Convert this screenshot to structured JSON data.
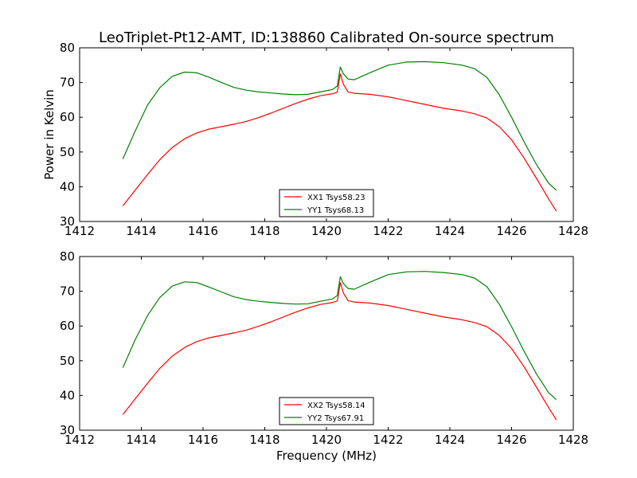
{
  "chart_data": [
    {
      "type": "line",
      "title": "LeoTriplet-Pt12-AMT, ID:138860 Calibrated On-source spectrum",
      "ylabel": "Power in Kelvin",
      "xlabel": "",
      "xlim": [
        1412,
        1428
      ],
      "ylim": [
        30,
        80
      ],
      "xticks": [
        1412,
        1414,
        1416,
        1418,
        1420,
        1422,
        1424,
        1426,
        1428
      ],
      "yticks": [
        30,
        40,
        50,
        60,
        70,
        80
      ],
      "legend_position": "lower-center",
      "grid": false,
      "series": [
        {
          "name": "XX1 Tsys58.23",
          "color": "#ff0000",
          "x": [
            1413.4,
            1413.8,
            1414.2,
            1414.6,
            1415.0,
            1415.4,
            1415.8,
            1416.2,
            1416.6,
            1417.0,
            1417.4,
            1417.8,
            1418.2,
            1418.6,
            1419.0,
            1419.4,
            1419.8,
            1420.2,
            1420.35,
            1420.45,
            1420.55,
            1420.7,
            1420.9,
            1421.4,
            1422.0,
            1422.6,
            1423.2,
            1423.8,
            1424.4,
            1424.8,
            1425.2,
            1425.6,
            1426.0,
            1426.4,
            1426.8,
            1427.2,
            1427.45
          ],
          "y": [
            34.5,
            39.0,
            43.5,
            47.8,
            51.3,
            53.8,
            55.5,
            56.6,
            57.3,
            58.0,
            58.8,
            59.9,
            61.2,
            62.6,
            64.0,
            65.2,
            66.2,
            66.8,
            67.2,
            72.5,
            69.5,
            67.3,
            66.9,
            66.6,
            65.9,
            64.8,
            63.7,
            62.6,
            61.8,
            61.0,
            59.8,
            57.3,
            53.5,
            48.3,
            42.5,
            36.5,
            33.0
          ]
        },
        {
          "name": "YY1 Tsys68.13",
          "color": "#008000",
          "x": [
            1413.4,
            1413.8,
            1414.2,
            1414.6,
            1415.0,
            1415.4,
            1415.8,
            1416.2,
            1416.6,
            1417.0,
            1417.4,
            1417.8,
            1418.2,
            1418.6,
            1419.0,
            1419.4,
            1419.8,
            1420.2,
            1420.35,
            1420.45,
            1420.55,
            1420.7,
            1420.9,
            1421.4,
            1422.0,
            1422.6,
            1423.2,
            1423.8,
            1424.4,
            1424.8,
            1425.2,
            1425.6,
            1426.0,
            1426.4,
            1426.8,
            1427.2,
            1427.45
          ],
          "y": [
            48.0,
            56.0,
            63.5,
            68.5,
            71.8,
            73.0,
            72.8,
            71.5,
            70.0,
            68.6,
            67.8,
            67.3,
            67.0,
            66.7,
            66.5,
            66.6,
            67.3,
            68.0,
            69.0,
            74.5,
            72.5,
            71.0,
            70.8,
            72.8,
            75.0,
            75.9,
            76.0,
            75.7,
            75.0,
            74.0,
            71.5,
            66.5,
            60.0,
            53.0,
            46.5,
            41.0,
            39.0
          ]
        }
      ]
    },
    {
      "type": "line",
      "title": "",
      "ylabel": "",
      "xlabel": "Frequency (MHz)",
      "xlim": [
        1412,
        1428
      ],
      "ylim": [
        30,
        80
      ],
      "xticks": [
        1412,
        1414,
        1416,
        1418,
        1420,
        1422,
        1424,
        1426,
        1428
      ],
      "yticks": [
        30,
        40,
        50,
        60,
        70,
        80
      ],
      "legend_position": "lower-center",
      "grid": false,
      "series": [
        {
          "name": "XX2 Tsys58.14",
          "color": "#ff0000",
          "x": [
            1413.4,
            1413.8,
            1414.2,
            1414.6,
            1415.0,
            1415.4,
            1415.8,
            1416.2,
            1416.6,
            1417.0,
            1417.4,
            1417.8,
            1418.2,
            1418.6,
            1419.0,
            1419.4,
            1419.8,
            1420.2,
            1420.35,
            1420.45,
            1420.55,
            1420.7,
            1420.9,
            1421.4,
            1422.0,
            1422.6,
            1423.2,
            1423.8,
            1424.4,
            1424.8,
            1425.2,
            1425.6,
            1426.0,
            1426.4,
            1426.8,
            1427.2,
            1427.45
          ],
          "y": [
            34.5,
            39.0,
            43.5,
            47.8,
            51.3,
            53.8,
            55.5,
            56.6,
            57.3,
            58.0,
            58.8,
            59.9,
            61.2,
            62.6,
            64.0,
            65.2,
            66.2,
            66.8,
            67.2,
            72.5,
            69.5,
            67.3,
            66.9,
            66.6,
            65.9,
            64.8,
            63.7,
            62.6,
            61.8,
            61.0,
            59.8,
            57.3,
            53.5,
            48.3,
            42.5,
            36.5,
            33.0
          ]
        },
        {
          "name": "YY2 Tsys67.91",
          "color": "#008000",
          "x": [
            1413.4,
            1413.8,
            1414.2,
            1414.6,
            1415.0,
            1415.4,
            1415.8,
            1416.2,
            1416.6,
            1417.0,
            1417.4,
            1417.8,
            1418.2,
            1418.6,
            1419.0,
            1419.4,
            1419.8,
            1420.2,
            1420.35,
            1420.45,
            1420.55,
            1420.7,
            1420.9,
            1421.4,
            1422.0,
            1422.6,
            1423.2,
            1423.8,
            1424.4,
            1424.8,
            1425.2,
            1425.6,
            1426.0,
            1426.4,
            1426.8,
            1427.2,
            1427.45
          ],
          "y": [
            48.0,
            56.0,
            63.0,
            68.2,
            71.5,
            72.7,
            72.5,
            71.2,
            69.8,
            68.4,
            67.6,
            67.1,
            66.8,
            66.5,
            66.3,
            66.4,
            67.1,
            67.8,
            68.8,
            74.2,
            72.2,
            70.8,
            70.6,
            72.6,
            74.8,
            75.6,
            75.7,
            75.4,
            74.8,
            73.8,
            71.3,
            66.3,
            59.8,
            52.8,
            46.3,
            40.8,
            38.8
          ]
        }
      ]
    }
  ]
}
